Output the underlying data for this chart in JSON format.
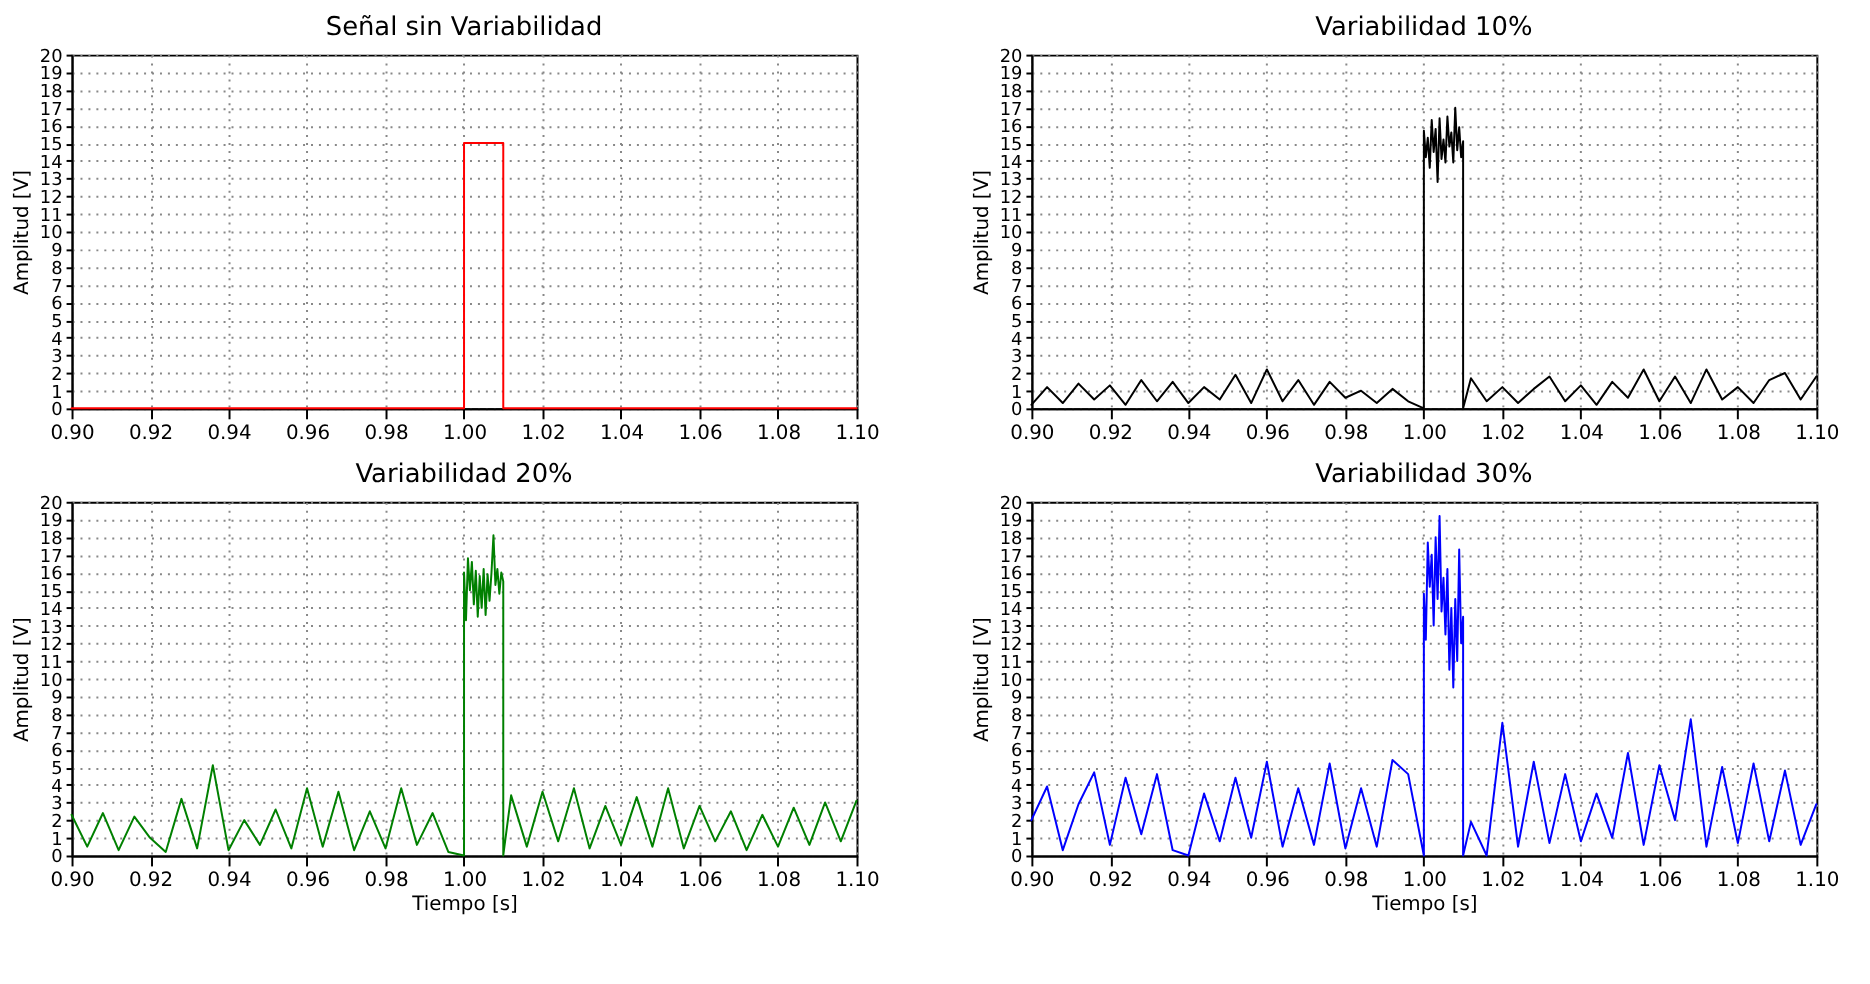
{
  "chart_data": [
    {
      "type": "line",
      "title": "Señal sin Variabilidad",
      "ylabel": "Amplitud [V]",
      "grid": true,
      "marker": "none",
      "line_style": "solid",
      "xlim": [
        0.9,
        1.1
      ],
      "ylim": [
        0,
        20
      ],
      "xticks": [
        {
          "value": 0.9,
          "label": "0.90"
        },
        {
          "value": 0.92,
          "label": "0.92"
        },
        {
          "value": 0.94,
          "label": "0.94"
        },
        {
          "value": 0.96,
          "label": "0.96"
        },
        {
          "value": 0.98,
          "label": "0.98"
        },
        {
          "value": 1.0,
          "label": "1.00"
        },
        {
          "value": 1.02,
          "label": "1.02"
        },
        {
          "value": 1.04,
          "label": "1.04"
        },
        {
          "value": 1.06,
          "label": "1.06"
        },
        {
          "value": 1.08,
          "label": "1.08"
        },
        {
          "value": 1.1,
          "label": "1.10"
        }
      ],
      "yticks": [
        0,
        1,
        2,
        3,
        4,
        5,
        6,
        7,
        8,
        9,
        10,
        11,
        12,
        13,
        14,
        15,
        16,
        17,
        18,
        19,
        20
      ],
      "series": [
        {
          "color": "#ff0000",
          "x": [
            0.9,
            1.0,
            1.0,
            1.01,
            1.01,
            1.1
          ],
          "values": [
            0,
            0,
            15,
            15,
            0,
            0
          ]
        }
      ]
    },
    {
      "type": "line",
      "title": "Variabilidad 10%",
      "ylabel": "Amplitud [V]",
      "grid": true,
      "marker": "none",
      "line_style": "solid",
      "xlim": [
        0.9,
        1.1
      ],
      "ylim": [
        0,
        20
      ],
      "xticks": [
        {
          "value": 0.9,
          "label": "0.90"
        },
        {
          "value": 0.92,
          "label": "0.92"
        },
        {
          "value": 0.94,
          "label": "0.94"
        },
        {
          "value": 0.96,
          "label": "0.96"
        },
        {
          "value": 0.98,
          "label": "0.98"
        },
        {
          "value": 1.0,
          "label": "1.00"
        },
        {
          "value": 1.02,
          "label": "1.02"
        },
        {
          "value": 1.04,
          "label": "1.04"
        },
        {
          "value": 1.06,
          "label": "1.06"
        },
        {
          "value": 1.08,
          "label": "1.08"
        },
        {
          "value": 1.1,
          "label": "1.10"
        }
      ],
      "yticks": [
        0,
        1,
        2,
        3,
        4,
        5,
        6,
        7,
        8,
        9,
        10,
        11,
        12,
        13,
        14,
        15,
        16,
        17,
        18,
        19,
        20
      ],
      "series": [
        {
          "color": "#000000",
          "x": [
            0.9,
            0.904,
            0.908,
            0.912,
            0.916,
            0.92,
            0.924,
            0.928,
            0.932,
            0.936,
            0.94,
            0.944,
            0.948,
            0.952,
            0.956,
            0.96,
            0.964,
            0.968,
            0.972,
            0.976,
            0.98,
            0.984,
            0.988,
            0.992,
            0.996,
            1.0,
            1.0,
            1.0005,
            1.001,
            1.0015,
            1.002,
            1.0025,
            1.003,
            1.0035,
            1.004,
            1.0045,
            1.005,
            1.0055,
            1.006,
            1.0065,
            1.007,
            1.0075,
            1.008,
            1.0085,
            1.009,
            1.0095,
            1.01,
            1.01,
            1.012,
            1.016,
            1.02,
            1.024,
            1.028,
            1.032,
            1.036,
            1.04,
            1.044,
            1.048,
            1.052,
            1.056,
            1.06,
            1.064,
            1.068,
            1.072,
            1.076,
            1.08,
            1.084,
            1.088,
            1.092,
            1.096,
            1.1
          ],
          "values": [
            0.2,
            1.2,
            0.3,
            1.4,
            0.5,
            1.3,
            0.2,
            1.6,
            0.4,
            1.5,
            0.3,
            1.2,
            0.5,
            1.9,
            0.3,
            2.2,
            0.4,
            1.6,
            0.2,
            1.5,
            0.6,
            1.0,
            0.3,
            1.1,
            0.4,
            0,
            15.7,
            14.2,
            15.3,
            13.6,
            16.3,
            14.5,
            15.8,
            12.8,
            16.4,
            14.1,
            15.2,
            13.9,
            16.5,
            14.8,
            15.6,
            13.9,
            17.0,
            14.6,
            15.9,
            14.2,
            15.1,
            0,
            1.7,
            0.4,
            1.2,
            0.3,
            1.1,
            1.8,
            0.4,
            1.3,
            0.2,
            1.5,
            0.6,
            2.2,
            0.4,
            1.8,
            0.3,
            2.2,
            0.5,
            1.2,
            0.3,
            1.6,
            2.0,
            0.5,
            1.8
          ]
        }
      ]
    },
    {
      "type": "line",
      "title": "Variabilidad 20%",
      "xlabel": "Tiempo [s]",
      "ylabel": "Amplitud [V]",
      "grid": true,
      "marker": "none",
      "line_style": "solid",
      "xlim": [
        0.9,
        1.1
      ],
      "ylim": [
        0,
        20
      ],
      "xticks": [
        {
          "value": 0.9,
          "label": "0.90"
        },
        {
          "value": 0.92,
          "label": "0.92"
        },
        {
          "value": 0.94,
          "label": "0.94"
        },
        {
          "value": 0.96,
          "label": "0.96"
        },
        {
          "value": 0.98,
          "label": "0.98"
        },
        {
          "value": 1.0,
          "label": "1.00"
        },
        {
          "value": 1.02,
          "label": "1.02"
        },
        {
          "value": 1.04,
          "label": "1.04"
        },
        {
          "value": 1.06,
          "label": "1.06"
        },
        {
          "value": 1.08,
          "label": "1.08"
        },
        {
          "value": 1.1,
          "label": "1.10"
        }
      ],
      "yticks": [
        0,
        1,
        2,
        3,
        4,
        5,
        6,
        7,
        8,
        9,
        10,
        11,
        12,
        13,
        14,
        15,
        16,
        17,
        18,
        19,
        20
      ],
      "series": [
        {
          "color": "#008000",
          "x": [
            0.9,
            0.904,
            0.908,
            0.912,
            0.916,
            0.92,
            0.924,
            0.928,
            0.932,
            0.936,
            0.94,
            0.944,
            0.948,
            0.952,
            0.956,
            0.96,
            0.964,
            0.968,
            0.972,
            0.976,
            0.98,
            0.984,
            0.988,
            0.992,
            0.996,
            1.0,
            1.0,
            1.0005,
            1.001,
            1.0015,
            1.002,
            1.0025,
            1.003,
            1.0035,
            1.004,
            1.0045,
            1.005,
            1.0055,
            1.006,
            1.0065,
            1.007,
            1.0075,
            1.008,
            1.0085,
            1.009,
            1.0095,
            1.01,
            1.01,
            1.012,
            1.016,
            1.02,
            1.024,
            1.028,
            1.032,
            1.036,
            1.04,
            1.044,
            1.048,
            1.052,
            1.056,
            1.06,
            1.064,
            1.068,
            1.072,
            1.076,
            1.08,
            1.084,
            1.088,
            1.092,
            1.096,
            1.1
          ],
          "values": [
            2.3,
            0.5,
            2.4,
            0.3,
            2.2,
            1.0,
            0.2,
            3.2,
            0.4,
            5.1,
            0.3,
            2.0,
            0.6,
            2.6,
            0.4,
            3.8,
            0.5,
            3.6,
            0.3,
            2.5,
            0.4,
            3.8,
            0.6,
            2.4,
            0.2,
            0,
            16.0,
            13.3,
            16.8,
            15.0,
            16.6,
            14.2,
            16.1,
            13.5,
            15.8,
            14.0,
            16.2,
            13.6,
            15.9,
            14.4,
            16.0,
            18.1,
            15.3,
            16.2,
            14.8,
            16.0,
            15.5,
            0,
            3.4,
            0.5,
            3.6,
            0.8,
            3.8,
            0.4,
            2.8,
            0.6,
            3.3,
            0.5,
            3.8,
            0.4,
            2.8,
            0.8,
            2.5,
            0.3,
            2.3,
            0.5,
            2.7,
            0.6,
            3.0,
            0.8,
            3.1
          ]
        }
      ]
    },
    {
      "type": "line",
      "title": "Variabilidad 30%",
      "xlabel": "Tiempo [s]",
      "ylabel": "Amplitud [V]",
      "grid": true,
      "marker": "none",
      "line_style": "solid",
      "xlim": [
        0.9,
        1.1
      ],
      "ylim": [
        0,
        20
      ],
      "xticks": [
        {
          "value": 0.9,
          "label": "0.90"
        },
        {
          "value": 0.92,
          "label": "0.92"
        },
        {
          "value": 0.94,
          "label": "0.94"
        },
        {
          "value": 0.96,
          "label": "0.96"
        },
        {
          "value": 0.98,
          "label": "0.98"
        },
        {
          "value": 1.0,
          "label": "1.00"
        },
        {
          "value": 1.02,
          "label": "1.02"
        },
        {
          "value": 1.04,
          "label": "1.04"
        },
        {
          "value": 1.06,
          "label": "1.06"
        },
        {
          "value": 1.08,
          "label": "1.08"
        },
        {
          "value": 1.1,
          "label": "1.10"
        }
      ],
      "yticks": [
        0,
        1,
        2,
        3,
        4,
        5,
        6,
        7,
        8,
        9,
        10,
        11,
        12,
        13,
        14,
        15,
        16,
        17,
        18,
        19,
        20
      ],
      "series": [
        {
          "color": "#0000ff",
          "x": [
            0.9,
            0.904,
            0.908,
            0.912,
            0.916,
            0.92,
            0.924,
            0.928,
            0.932,
            0.936,
            0.94,
            0.944,
            0.948,
            0.952,
            0.956,
            0.96,
            0.964,
            0.968,
            0.972,
            0.976,
            0.98,
            0.984,
            0.988,
            0.992,
            0.996,
            1.0,
            1.0,
            1.0005,
            1.001,
            1.0015,
            1.002,
            1.0025,
            1.003,
            1.0035,
            1.004,
            1.0045,
            1.005,
            1.0055,
            1.006,
            1.0065,
            1.007,
            1.0075,
            1.008,
            1.0085,
            1.009,
            1.0095,
            1.01,
            1.01,
            1.012,
            1.016,
            1.02,
            1.024,
            1.028,
            1.032,
            1.036,
            1.04,
            1.044,
            1.048,
            1.052,
            1.056,
            1.06,
            1.064,
            1.068,
            1.072,
            1.076,
            1.08,
            1.084,
            1.088,
            1.092,
            1.096,
            1.1
          ],
          "values": [
            2.0,
            3.9,
            0.3,
            2.9,
            4.7,
            0.6,
            4.4,
            1.2,
            4.6,
            0.3,
            0.0,
            3.5,
            0.8,
            4.4,
            1.0,
            5.3,
            0.5,
            3.8,
            0.6,
            5.2,
            0.4,
            3.8,
            0.5,
            5.4,
            4.6,
            0,
            14.8,
            12.2,
            17.7,
            15.2,
            17.0,
            13.0,
            18.0,
            14.5,
            19.2,
            13.8,
            15.7,
            12.5,
            16.2,
            10.5,
            14.0,
            9.5,
            14.5,
            11.0,
            17.3,
            12.0,
            13.5,
            0,
            1.9,
            0.0,
            7.5,
            0.5,
            5.3,
            0.7,
            4.6,
            0.8,
            3.5,
            1.0,
            5.8,
            0.6,
            5.1,
            2.0,
            7.7,
            0.5,
            5.0,
            0.7,
            5.2,
            0.8,
            4.8,
            0.6,
            2.9
          ]
        }
      ]
    }
  ]
}
